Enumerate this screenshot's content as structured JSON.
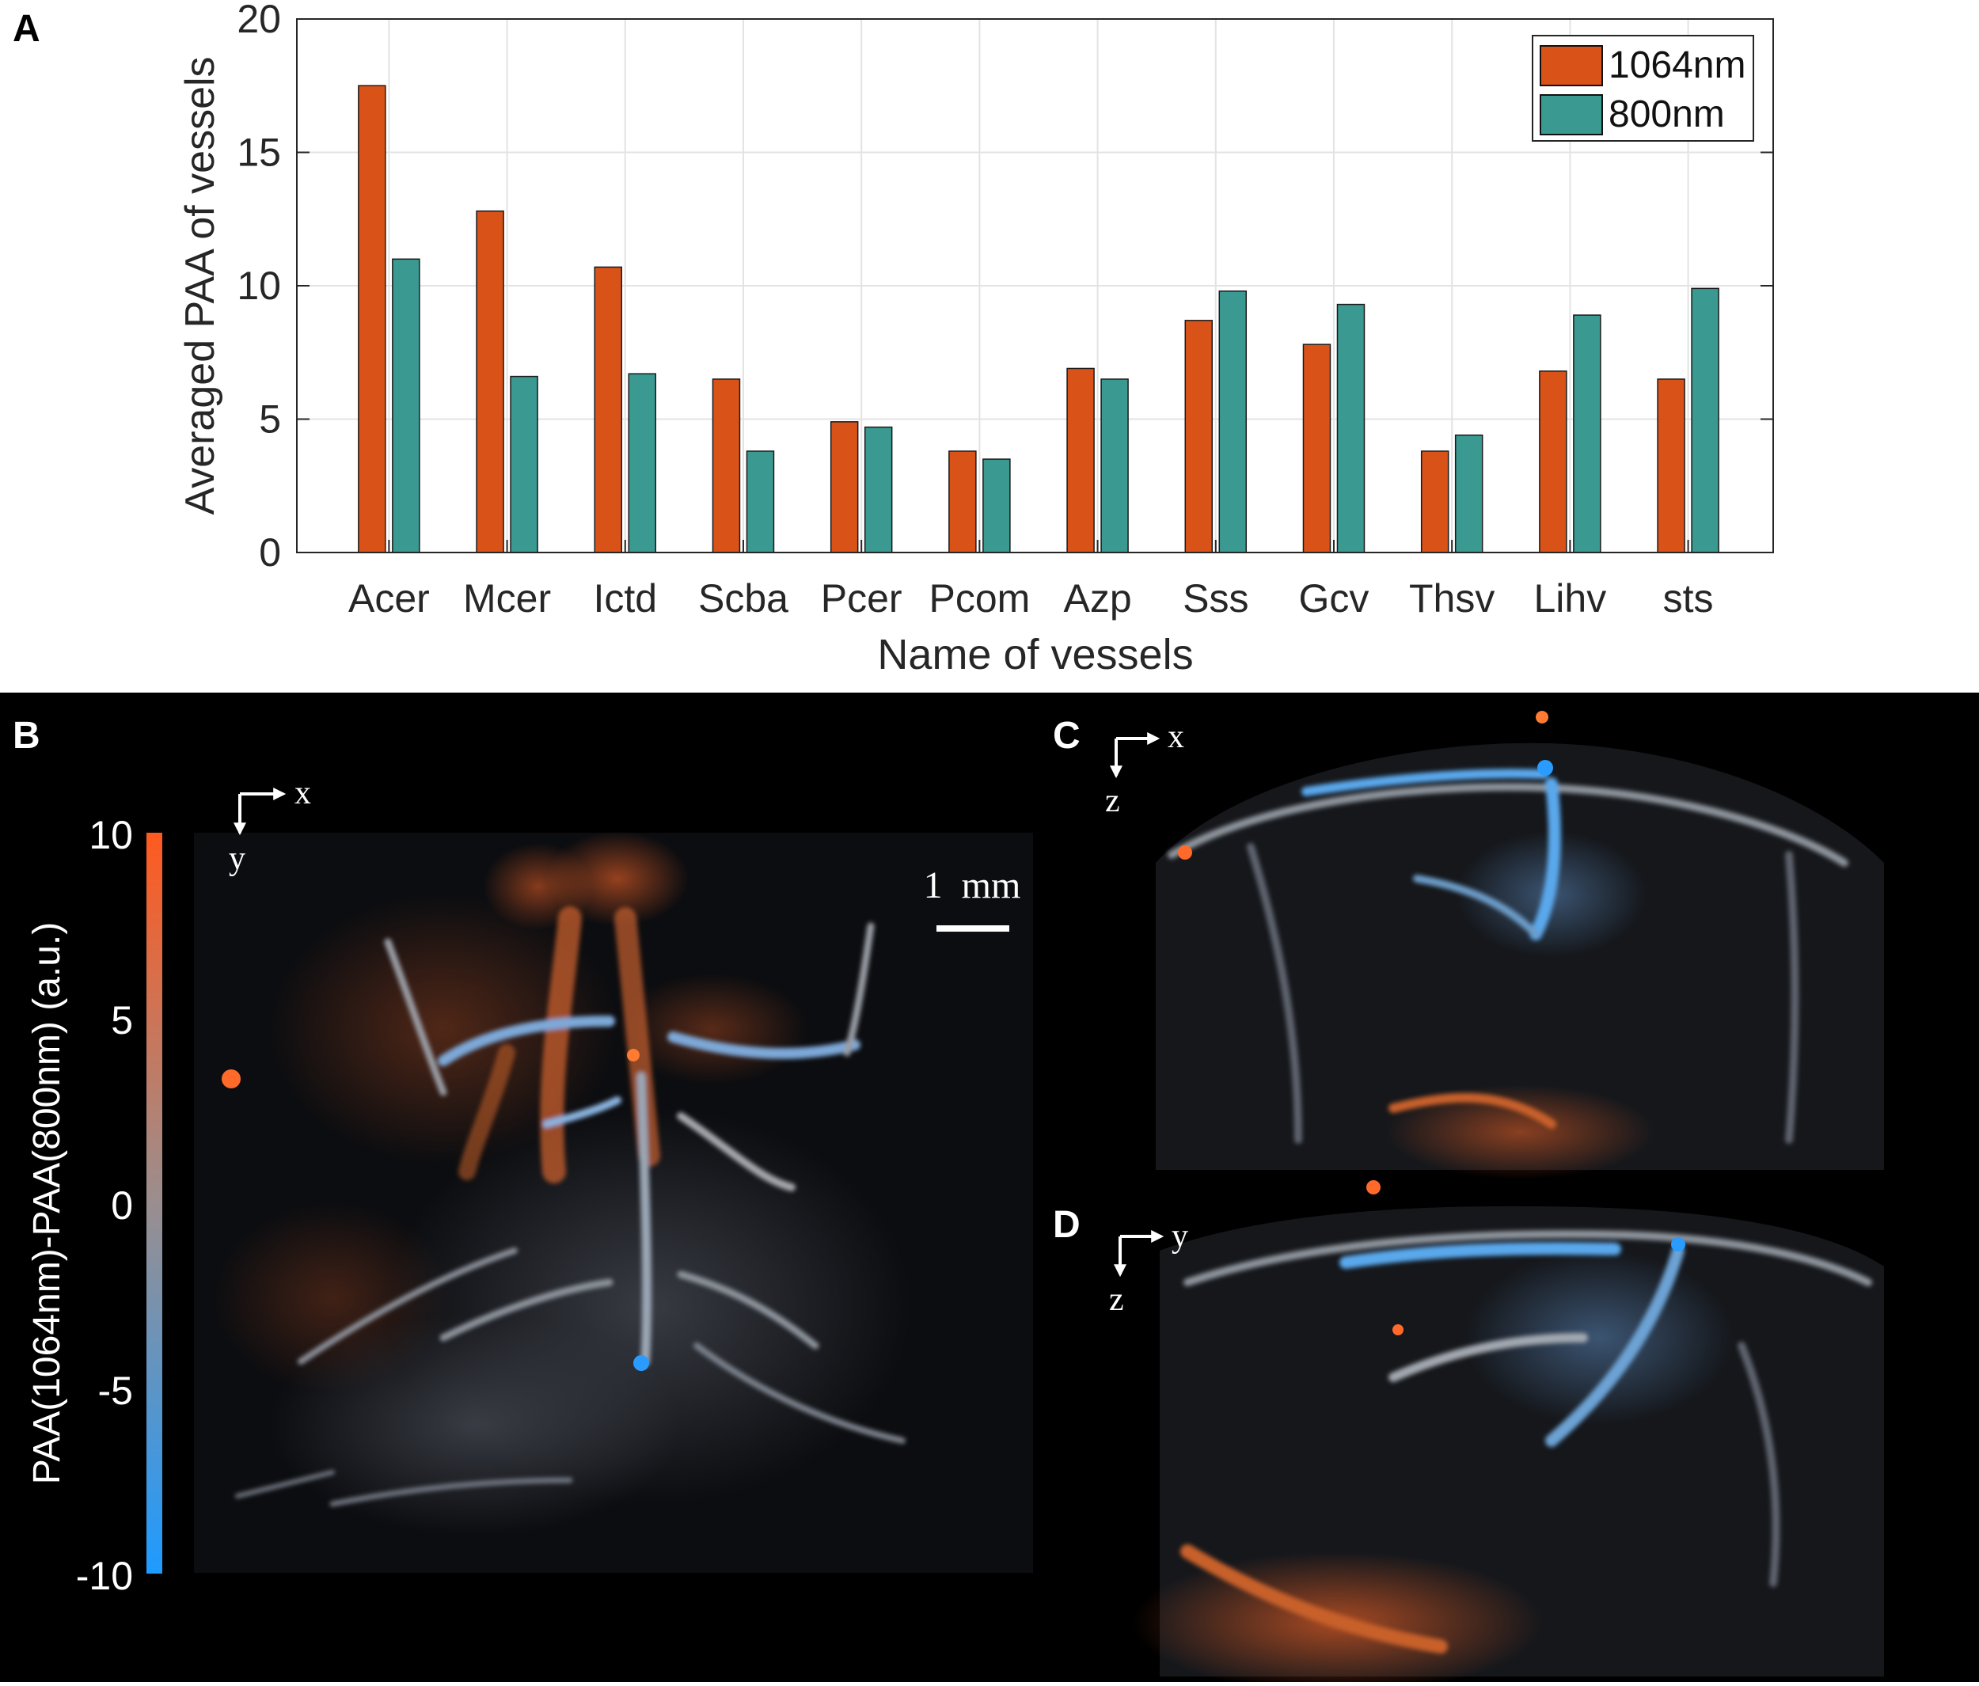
{
  "panels": {
    "a": "A",
    "b": "B",
    "c": "C",
    "d": "D"
  },
  "chart_data": {
    "type": "bar",
    "title": "",
    "xlabel": "Name of vessels",
    "ylabel": "Averaged PAA of vessels",
    "categories": [
      "Acer",
      "Mcer",
      "Ictd",
      "Scba",
      "Pcer",
      "Pcom",
      "Azp",
      "Sss",
      "Gcv",
      "Thsv",
      "Lihv",
      "sts"
    ],
    "series": [
      {
        "name": "1064nm",
        "color": "#d95319",
        "values": [
          17.5,
          12.8,
          10.7,
          6.5,
          4.9,
          3.8,
          6.9,
          8.7,
          7.8,
          3.8,
          6.8,
          6.5
        ]
      },
      {
        "name": "800nm",
        "color": "#3a9a92",
        "values": [
          11.0,
          6.6,
          6.7,
          3.8,
          4.7,
          3.5,
          6.5,
          9.8,
          9.3,
          4.4,
          8.9,
          9.9
        ]
      }
    ],
    "ylim": [
      0,
      20
    ],
    "yticks": [
      0,
      5,
      10,
      15,
      20
    ],
    "grid": true,
    "legend": "top-right"
  },
  "colorbar": {
    "label": "PAA(1064nm)-PAA(800nm) (a.u.)",
    "ticks": [
      "10",
      "5",
      "0",
      "-5",
      "-10"
    ],
    "range": [
      -10,
      10
    ],
    "color_high": "#ff5a1f",
    "color_mid": "#9a8e8e",
    "color_low": "#1e9bff"
  },
  "images": {
    "b_axes": {
      "h": "x",
      "v": "y"
    },
    "c_axes": {
      "h": "x",
      "v": "z"
    },
    "d_axes": {
      "h": "y",
      "v": "z"
    },
    "scale_bar": "1  mm"
  }
}
